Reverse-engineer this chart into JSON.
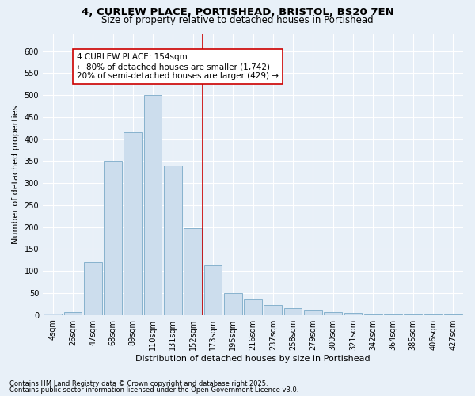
{
  "title_line1": "4, CURLEW PLACE, PORTISHEAD, BRISTOL, BS20 7EN",
  "title_line2": "Size of property relative to detached houses in Portishead",
  "xlabel": "Distribution of detached houses by size in Portishead",
  "ylabel": "Number of detached properties",
  "footnote1": "Contains HM Land Registry data © Crown copyright and database right 2025.",
  "footnote2": "Contains public sector information licensed under the Open Government Licence v3.0.",
  "bar_labels": [
    "4sqm",
    "26sqm",
    "47sqm",
    "68sqm",
    "89sqm",
    "110sqm",
    "131sqm",
    "152sqm",
    "173sqm",
    "195sqm",
    "216sqm",
    "237sqm",
    "258sqm",
    "279sqm",
    "300sqm",
    "321sqm",
    "342sqm",
    "364sqm",
    "385sqm",
    "406sqm",
    "427sqm"
  ],
  "bar_values": [
    3,
    7,
    120,
    350,
    415,
    500,
    340,
    197,
    113,
    50,
    35,
    23,
    15,
    10,
    7,
    4,
    2,
    1,
    1,
    1,
    1
  ],
  "bar_color": "#ccdded",
  "bar_edge_color": "#7aaac8",
  "vline_color": "#cc0000",
  "vline_x_index": 7.5,
  "annotation_text": "4 CURLEW PLACE: 154sqm\n← 80% of detached houses are smaller (1,742)\n20% of semi-detached houses are larger (429) →",
  "annotation_box_color": "#ffffff",
  "annotation_box_edge": "#cc0000",
  "bg_color": "#e8f0f8",
  "plot_bg_color": "#e8f0f8",
  "ylim": [
    0,
    640
  ],
  "yticks": [
    0,
    50,
    100,
    150,
    200,
    250,
    300,
    350,
    400,
    450,
    500,
    550,
    600
  ],
  "grid_color": "#ffffff",
  "title_fontsize": 9.5,
  "subtitle_fontsize": 8.5,
  "axis_label_fontsize": 8,
  "tick_fontsize": 7,
  "annotation_fontsize": 7.5,
  "footnote_fontsize": 6
}
